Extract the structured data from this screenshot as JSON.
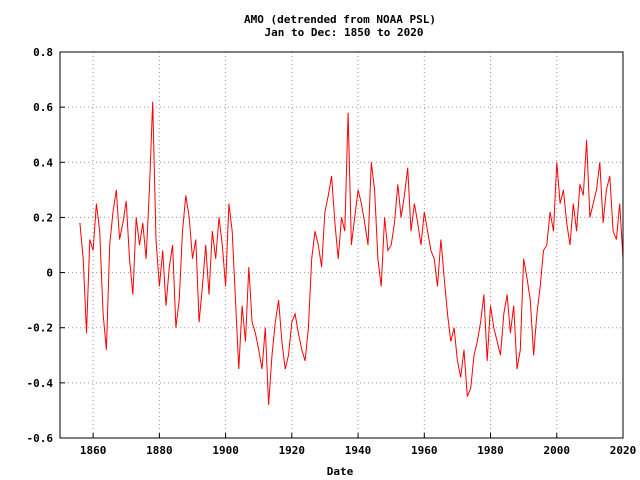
{
  "chart_data": {
    "type": "line",
    "title": "AMO (detrended from NOAA PSL)",
    "subtitle": "Jan to Dec: 1850 to 2020",
    "xlabel": "Date",
    "ylabel": "",
    "xlim": [
      1850,
      2020
    ],
    "ylim": [
      -0.6,
      0.8
    ],
    "xticks": [
      "1860",
      "1880",
      "1900",
      "1920",
      "1940",
      "1960",
      "1980",
      "2000",
      "2020"
    ],
    "xtick_values": [
      1860,
      1880,
      1900,
      1920,
      1940,
      1960,
      1980,
      2000,
      2020
    ],
    "yticks": [
      "0.8",
      "0.6",
      "0.4",
      "0.2",
      "0",
      "-0.2",
      "-0.4",
      "-0.6"
    ],
    "ytick_values": [
      0.8,
      0.6,
      0.4,
      0.2,
      0,
      -0.2,
      -0.4,
      -0.6
    ],
    "grid": true,
    "colors": {
      "series": "#ff0000",
      "grid": "#999999",
      "axes": "#000000"
    },
    "series": [
      {
        "x": [
          1856,
          1857,
          1858,
          1859,
          1860,
          1861,
          1862,
          1863,
          1864,
          1865,
          1866,
          1867,
          1868,
          1869,
          1870,
          1871,
          1872,
          1873,
          1874,
          1875,
          1876,
          1877,
          1878,
          1879,
          1880,
          1881,
          1882,
          1883,
          1884,
          1885,
          1886,
          1887,
          1888,
          1889,
          1890,
          1891,
          1892,
          1893,
          1894,
          1895,
          1896,
          1897,
          1898,
          1899,
          1900,
          1901,
          1902,
          1903,
          1904,
          1905,
          1906,
          1907,
          1908,
          1909,
          1910,
          1911,
          1912,
          1913,
          1914,
          1915,
          1916,
          1917,
          1918,
          1919,
          1920,
          1921,
          1922,
          1923,
          1924,
          1925,
          1926,
          1927,
          1928,
          1929,
          1930,
          1931,
          1932,
          1933,
          1934,
          1935,
          1936,
          1937,
          1938,
          1939,
          1940,
          1941,
          1942,
          1943,
          1944,
          1945,
          1946,
          1947,
          1948,
          1949,
          1950,
          1951,
          1952,
          1953,
          1954,
          1955,
          1956,
          1957,
          1958,
          1959,
          1960,
          1961,
          1962,
          1963,
          1964,
          1965,
          1966,
          1967,
          1968,
          1969,
          1970,
          1971,
          1972,
          1973,
          1974,
          1975,
          1976,
          1977,
          1978,
          1979,
          1980,
          1981,
          1982,
          1983,
          1984,
          1985,
          1986,
          1987,
          1988,
          1989,
          1990,
          1991,
          1992,
          1993,
          1994,
          1995,
          1996,
          1997,
          1998,
          1999,
          2000,
          2001,
          2002,
          2003,
          2004,
          2005,
          2006,
          2007,
          2008,
          2009,
          2010,
          2011,
          2012,
          2013,
          2014,
          2015,
          2016,
          2017,
          2018,
          2019,
          2020
        ],
        "y": [
          0.18,
          0.05,
          -0.22,
          0.12,
          0.08,
          0.25,
          0.15,
          -0.15,
          -0.28,
          0.1,
          0.22,
          0.3,
          0.12,
          0.18,
          0.26,
          0.05,
          -0.08,
          0.2,
          0.1,
          0.18,
          0.05,
          0.3,
          0.62,
          0.12,
          -0.05,
          0.08,
          -0.12,
          0.02,
          0.1,
          -0.2,
          -0.1,
          0.15,
          0.28,
          0.2,
          0.05,
          0.12,
          -0.18,
          -0.05,
          0.1,
          -0.08,
          0.15,
          0.05,
          0.2,
          0.1,
          -0.05,
          0.25,
          0.15,
          -0.1,
          -0.35,
          -0.12,
          -0.25,
          0.02,
          -0.18,
          -0.22,
          -0.28,
          -0.35,
          -0.2,
          -0.48,
          -0.3,
          -0.18,
          -0.1,
          -0.25,
          -0.35,
          -0.3,
          -0.18,
          -0.15,
          -0.22,
          -0.28,
          -0.32,
          -0.2,
          0.05,
          0.15,
          0.1,
          0.02,
          0.22,
          0.28,
          0.35,
          0.18,
          0.05,
          0.2,
          0.15,
          0.58,
          0.1,
          0.2,
          0.3,
          0.25,
          0.18,
          0.1,
          0.4,
          0.3,
          0.05,
          -0.05,
          0.2,
          0.08,
          0.1,
          0.18,
          0.32,
          0.2,
          0.28,
          0.38,
          0.15,
          0.25,
          0.18,
          0.1,
          0.22,
          0.15,
          0.08,
          0.05,
          -0.05,
          0.12,
          -0.02,
          -0.15,
          -0.25,
          -0.2,
          -0.32,
          -0.38,
          -0.28,
          -0.45,
          -0.42,
          -0.3,
          -0.25,
          -0.18,
          -0.08,
          -0.32,
          -0.12,
          -0.2,
          -0.25,
          -0.3,
          -0.15,
          -0.08,
          -0.22,
          -0.12,
          -0.35,
          -0.28,
          0.05,
          -0.02,
          -0.1,
          -0.3,
          -0.15,
          -0.05,
          0.08,
          0.1,
          0.22,
          0.15,
          0.4,
          0.25,
          0.3,
          0.18,
          0.1,
          0.25,
          0.15,
          0.32,
          0.28,
          0.48,
          0.2,
          0.25,
          0.3,
          0.4,
          0.18,
          0.3,
          0.35,
          0.15,
          0.12,
          0.25,
          0.05
        ]
      }
    ]
  }
}
